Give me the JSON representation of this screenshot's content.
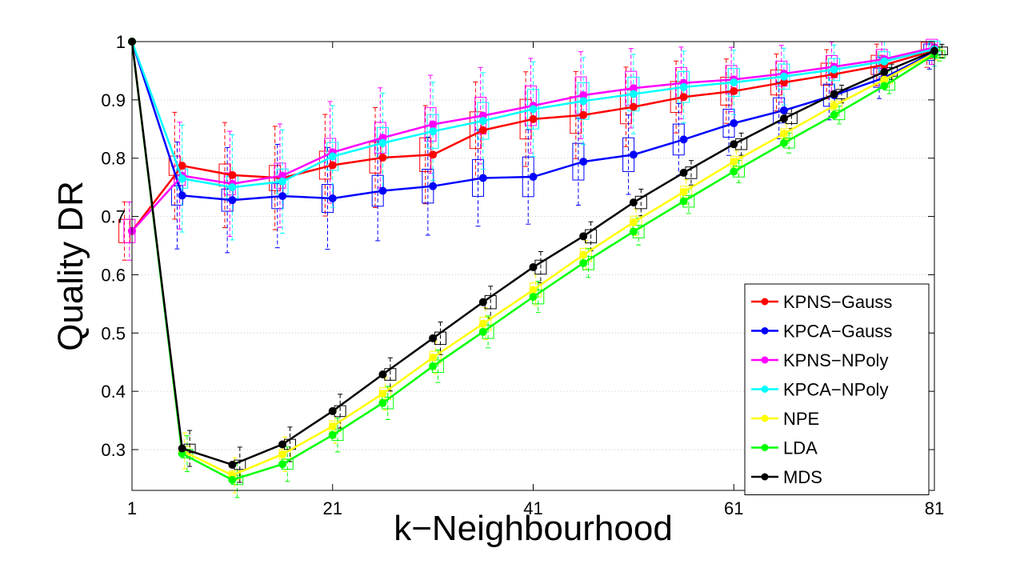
{
  "chart_data": {
    "type": "line",
    "title": "",
    "xlabel": "k−Neighbourhood",
    "ylabel": "Quality DR",
    "xlim": [
      1,
      81
    ],
    "ylim": [
      0.23,
      1.0
    ],
    "x_ticks": [
      1,
      21,
      41,
      61,
      81
    ],
    "x_tick_labels": [
      "1",
      "21",
      "41",
      "61",
      "81"
    ],
    "y_ticks": [
      0.3,
      0.4,
      0.5,
      0.6,
      0.7,
      0.8,
      0.9,
      1.0
    ],
    "y_tick_labels": [
      "0.3",
      "0.4",
      "0.5",
      "0.6",
      "0.7",
      "0.8",
      "0.9",
      "1"
    ],
    "grid": "horizontal dotted",
    "legend_position": "bottom-right",
    "has_boxplots": true,
    "x": [
      1,
      6,
      11,
      16,
      21,
      26,
      31,
      36,
      41,
      46,
      51,
      56,
      61,
      66,
      71,
      76,
      81
    ],
    "series": [
      {
        "name": "KPNS−Gauss",
        "color": "#ff0000",
        "values": [
          0.675,
          0.787,
          0.771,
          0.766,
          0.788,
          0.801,
          0.806,
          0.848,
          0.867,
          0.874,
          0.888,
          0.905,
          0.915,
          0.93,
          0.944,
          0.96,
          0.985
        ]
      },
      {
        "name": "KPCA−Gauss",
        "color": "#0000ff",
        "values": [
          1.0,
          0.736,
          0.728,
          0.735,
          0.731,
          0.744,
          0.752,
          0.766,
          0.768,
          0.794,
          0.806,
          0.832,
          0.86,
          0.882,
          0.908,
          0.938,
          0.982
        ]
      },
      {
        "name": "KPNS−NPoly",
        "color": "#ff00ff",
        "values": [
          0.675,
          0.77,
          0.756,
          0.77,
          0.81,
          0.835,
          0.858,
          0.873,
          0.89,
          0.908,
          0.92,
          0.929,
          0.935,
          0.945,
          0.957,
          0.97,
          0.99
        ]
      },
      {
        "name": "KPCA−NPoly",
        "color": "#00ffff",
        "values": [
          1.0,
          0.765,
          0.75,
          0.76,
          0.803,
          0.826,
          0.846,
          0.864,
          0.884,
          0.898,
          0.91,
          0.922,
          0.93,
          0.94,
          0.952,
          0.966,
          0.987
        ]
      },
      {
        "name": "NPE",
        "color": "#ffff00",
        "values": [
          1.0,
          0.298,
          0.256,
          0.292,
          0.34,
          0.396,
          0.458,
          0.516,
          0.574,
          0.634,
          0.69,
          0.742,
          0.794,
          0.842,
          0.89,
          0.935,
          0.98
        ]
      },
      {
        "name": "LDA",
        "color": "#00ff00",
        "values": [
          1.0,
          0.293,
          0.248,
          0.275,
          0.325,
          0.38,
          0.443,
          0.502,
          0.562,
          0.62,
          0.674,
          0.726,
          0.777,
          0.826,
          0.874,
          0.924,
          0.978
        ]
      },
      {
        "name": "MDS",
        "color": "#000000",
        "values": [
          1.0,
          0.302,
          0.274,
          0.309,
          0.366,
          0.429,
          0.491,
          0.553,
          0.613,
          0.666,
          0.724,
          0.775,
          0.824,
          0.868,
          0.91,
          0.948,
          0.984
        ]
      }
    ]
  }
}
